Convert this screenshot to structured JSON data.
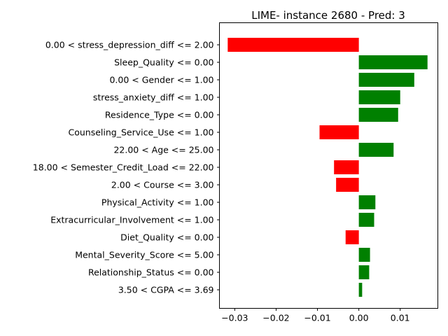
{
  "chart_data": {
    "type": "bar",
    "orientation": "horizontal",
    "title": "LIME- instance 2680 - Pred: 3",
    "xlabel": "",
    "ylabel": "",
    "categories": [
      "0.00 < stress_depression_diff <= 2.00",
      "Sleep_Quality <= 0.00",
      "0.00 < Gender <= 1.00",
      "stress_anxiety_diff <= 1.00",
      "Residence_Type <= 0.00",
      "Counseling_Service_Use <= 1.00",
      "22.00 < Age <= 25.00",
      "18.00 < Semester_Credit_Load <= 22.00",
      "2.00 < Course <= 3.00",
      "Physical_Activity <= 1.00",
      "Extracurricular_Involvement <= 1.00",
      "Diet_Quality <= 0.00",
      "Mental_Severity_Score <= 5.00",
      "Relationship_Status <= 0.00",
      "3.50 < CGPA <= 3.69"
    ],
    "values": [
      -0.0317,
      0.0166,
      0.0134,
      0.01,
      0.0095,
      -0.0095,
      0.0084,
      -0.006,
      -0.0055,
      0.004,
      0.0037,
      -0.0032,
      0.0027,
      0.0025,
      0.0008
    ],
    "xlim": [
      -0.0337,
      0.0191
    ],
    "xticks": [
      -0.03,
      -0.02,
      -0.01,
      0.0,
      0.01
    ],
    "xtick_labels": [
      "−0.03",
      "−0.02",
      "−0.01",
      "0.00",
      "0.01"
    ],
    "positive_color": "#008000",
    "negative_color": "#ff0000",
    "grid": false,
    "legend": "none"
  }
}
